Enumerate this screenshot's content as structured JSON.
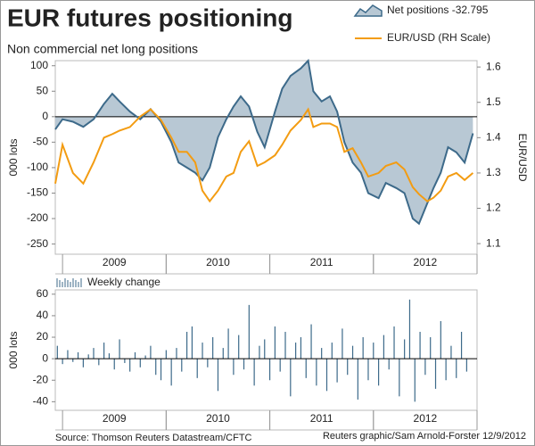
{
  "chart_data": [
    {
      "type": "line",
      "title": "EUR futures positioning",
      "subtitle": "Non commercial net long positions",
      "y_label": "000 lots",
      "y2_label": "EUR/USD",
      "x": [
        2008.93,
        2009.0,
        2009.1,
        2009.2,
        2009.3,
        2009.4,
        2009.48,
        2009.55,
        2009.65,
        2009.75,
        2009.85,
        2009.95,
        2010.05,
        2010.12,
        2010.2,
        2010.28,
        2010.35,
        2010.42,
        2010.5,
        2010.58,
        2010.65,
        2010.72,
        2010.8,
        2010.88,
        2010.95,
        2011.05,
        2011.12,
        2011.2,
        2011.3,
        2011.37,
        2011.42,
        2011.5,
        2011.58,
        2011.65,
        2011.72,
        2011.8,
        2011.88,
        2011.95,
        2012.05,
        2012.12,
        2012.22,
        2012.3,
        2012.38,
        2012.44,
        2012.52,
        2012.58,
        2012.65,
        2012.72,
        2012.8,
        2012.88,
        2012.96
      ],
      "series": [
        {
          "name": "Net positions -32.795",
          "color": "#3d6a8a",
          "fill": "#b8c8d4",
          "values": [
            -25,
            -5,
            -10,
            -20,
            -5,
            25,
            45,
            30,
            10,
            -5,
            15,
            -10,
            -50,
            -90,
            -100,
            -110,
            -125,
            -100,
            -40,
            -5,
            20,
            40,
            20,
            -30,
            -60,
            10,
            55,
            80,
            95,
            110,
            50,
            30,
            40,
            10,
            -50,
            -90,
            -110,
            -150,
            -160,
            -130,
            -140,
            -150,
            -200,
            -210,
            -170,
            -140,
            -110,
            -60,
            -70,
            -90,
            -32.795
          ]
        },
        {
          "name": "EUR/USD (RH Scale)",
          "color": "#f39c12",
          "axis": "y2",
          "values": [
            1.27,
            1.38,
            1.3,
            1.27,
            1.33,
            1.4,
            1.41,
            1.42,
            1.43,
            1.46,
            1.48,
            1.45,
            1.4,
            1.36,
            1.36,
            1.33,
            1.25,
            1.22,
            1.25,
            1.29,
            1.3,
            1.36,
            1.39,
            1.32,
            1.33,
            1.35,
            1.38,
            1.42,
            1.45,
            1.48,
            1.43,
            1.44,
            1.44,
            1.43,
            1.36,
            1.37,
            1.33,
            1.29,
            1.3,
            1.32,
            1.33,
            1.31,
            1.26,
            1.24,
            1.22,
            1.23,
            1.25,
            1.29,
            1.3,
            1.28,
            1.3
          ]
        }
      ],
      "xlim": [
        2008.93,
        2013
      ],
      "xticks": [
        {
          "value": 2009.5,
          "label": "2009"
        },
        {
          "value": 2010.5,
          "label": "2010"
        },
        {
          "value": 2011.5,
          "label": "2011"
        },
        {
          "value": 2012.5,
          "label": "2012"
        }
      ],
      "ylim": [
        -270,
        110
      ],
      "yticks": [
        100,
        50,
        0,
        -50,
        -100,
        -150,
        -200,
        -250
      ],
      "y2lim": [
        1.07,
        1.618
      ],
      "y2ticks": [
        1.6,
        1.5,
        1.4,
        1.3,
        1.2,
        1.1
      ]
    },
    {
      "type": "bar",
      "y_label": "000 lots",
      "x": [
        2008.95,
        2009.0,
        2009.05,
        2009.1,
        2009.15,
        2009.2,
        2009.25,
        2009.3,
        2009.35,
        2009.4,
        2009.45,
        2009.5,
        2009.55,
        2009.6,
        2009.65,
        2009.7,
        2009.75,
        2009.8,
        2009.85,
        2009.9,
        2009.95,
        2010.0,
        2010.05,
        2010.1,
        2010.15,
        2010.2,
        2010.25,
        2010.3,
        2010.35,
        2010.4,
        2010.45,
        2010.5,
        2010.55,
        2010.6,
        2010.65,
        2010.7,
        2010.75,
        2010.8,
        2010.85,
        2010.9,
        2010.95,
        2011.0,
        2011.05,
        2011.1,
        2011.15,
        2011.2,
        2011.25,
        2011.3,
        2011.35,
        2011.4,
        2011.45,
        2011.5,
        2011.55,
        2011.6,
        2011.65,
        2011.7,
        2011.75,
        2011.8,
        2011.85,
        2011.9,
        2011.95,
        2012.0,
        2012.05,
        2012.1,
        2012.15,
        2012.2,
        2012.25,
        2012.3,
        2012.35,
        2012.4,
        2012.45,
        2012.5,
        2012.55,
        2012.6,
        2012.65,
        2012.7,
        2012.75,
        2012.8,
        2012.85,
        2012.9
      ],
      "series": [
        {
          "name": "Weekly change",
          "color": "#3d6a8a",
          "values": [
            12,
            -5,
            8,
            -3,
            6,
            -8,
            4,
            10,
            -6,
            15,
            5,
            -10,
            18,
            -4,
            -12,
            6,
            -8,
            3,
            12,
            -15,
            -20,
            8,
            -25,
            10,
            -12,
            25,
            30,
            -18,
            15,
            -8,
            20,
            -30,
            10,
            28,
            -15,
            22,
            -10,
            50,
            -25,
            12,
            18,
            -20,
            30,
            -12,
            25,
            -35,
            15,
            20,
            -18,
            32,
            -25,
            10,
            -30,
            15,
            -22,
            28,
            -15,
            12,
            -38,
            20,
            -20,
            15,
            -25,
            22,
            -10,
            30,
            -35,
            18,
            55,
            -40,
            25,
            -15,
            20,
            -28,
            35,
            -20,
            12,
            -18,
            25,
            -12
          ]
        }
      ],
      "xlim": [
        2008.93,
        2013
      ],
      "xticks": [
        {
          "value": 2009.5,
          "label": "2009"
        },
        {
          "value": 2010.5,
          "label": "2010"
        },
        {
          "value": 2011.5,
          "label": "2011"
        },
        {
          "value": 2012.5,
          "label": "2012"
        }
      ],
      "ylim": [
        -48,
        64
      ],
      "yticks": [
        60,
        40,
        20,
        0,
        -20,
        -40
      ]
    }
  ],
  "footer": {
    "source": "Source: Thomson Reuters Datastream/CFTC",
    "credit": "Reuters graphic/Sam Arnold-Forster 12/9/2012"
  }
}
